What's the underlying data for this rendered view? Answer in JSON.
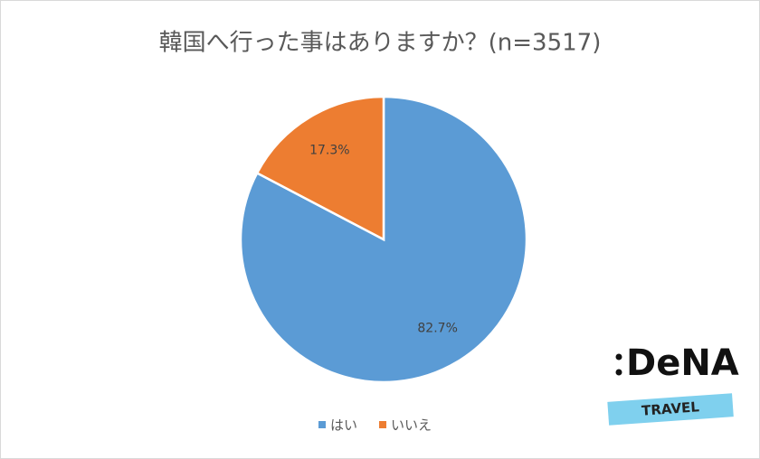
{
  "chart_data": {
    "type": "pie",
    "title": "韓国へ行った事はありますか？(n=3517)",
    "categories": [
      "はい",
      "いいえ"
    ],
    "values": [
      82.7,
      17.3
    ],
    "value_labels": [
      "82.7%",
      "17.3%"
    ],
    "colors": [
      "#5b9bd5",
      "#ed7d31"
    ],
    "legend": "bottom"
  },
  "logo": {
    "brand": "DeNA",
    "sub": "TRAVEL"
  }
}
